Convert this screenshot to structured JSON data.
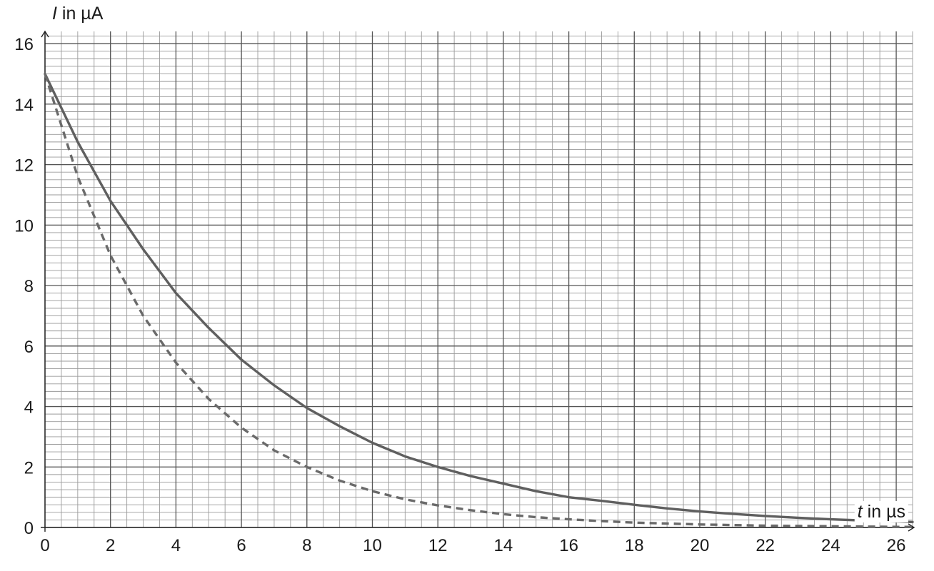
{
  "chart_data": {
    "type": "line",
    "title": "",
    "xlabel": "t in µs",
    "ylabel": "I in µA",
    "xlabel_var": "t",
    "xlabel_unit": " in µs",
    "ylabel_var": "I",
    "ylabel_unit": " in µA",
    "xlim": [
      0,
      26.5
    ],
    "ylim": [
      0,
      16.5
    ],
    "x_ticks": [
      0,
      2,
      4,
      6,
      8,
      10,
      12,
      14,
      16,
      18,
      20,
      22,
      24,
      26
    ],
    "y_ticks": [
      0,
      2,
      4,
      6,
      8,
      10,
      12,
      14,
      16
    ],
    "x_tick_labels": [
      "0",
      "2",
      "4",
      "6",
      "8",
      "10",
      "12",
      "14",
      "16",
      "18",
      "20",
      "22",
      "24",
      "26"
    ],
    "y_tick_labels": [
      "0",
      "2",
      "4",
      "6",
      "8",
      "10",
      "12",
      "14",
      "16"
    ],
    "grid": true,
    "x_minor_step": 0.5,
    "y_minor_step": 0.25,
    "series": [
      {
        "style": "solid",
        "color": "#5f5f5f",
        "x": [
          0,
          1,
          2,
          3,
          4,
          5,
          6,
          7,
          8,
          9,
          10,
          11,
          12,
          13,
          14,
          15,
          16,
          17,
          18,
          19,
          20,
          21,
          22,
          23,
          24,
          25,
          26,
          26.5
        ],
        "y": [
          15.0,
          12.75,
          10.8,
          9.2,
          7.75,
          6.6,
          5.55,
          4.7,
          3.95,
          3.35,
          2.8,
          2.35,
          2.0,
          1.7,
          1.45,
          1.2,
          1.0,
          0.88,
          0.75,
          0.63,
          0.53,
          0.45,
          0.38,
          0.32,
          0.27,
          0.23,
          0.2,
          0.18
        ]
      },
      {
        "style": "dashed",
        "color": "#6a6a6a",
        "x": [
          0,
          1,
          2,
          3,
          4,
          5,
          6,
          7,
          8,
          9,
          10,
          11,
          12,
          13,
          14,
          15,
          16,
          17,
          18,
          19,
          20,
          21,
          22,
          23,
          24,
          25,
          26,
          26.5
        ],
        "y": [
          15.0,
          11.6,
          9.0,
          7.0,
          5.45,
          4.25,
          3.3,
          2.55,
          2.0,
          1.55,
          1.2,
          0.93,
          0.73,
          0.57,
          0.44,
          0.34,
          0.27,
          0.21,
          0.16,
          0.13,
          0.1,
          0.08,
          0.06,
          0.05,
          0.04,
          0.03,
          0.02,
          0.02
        ]
      }
    ]
  }
}
